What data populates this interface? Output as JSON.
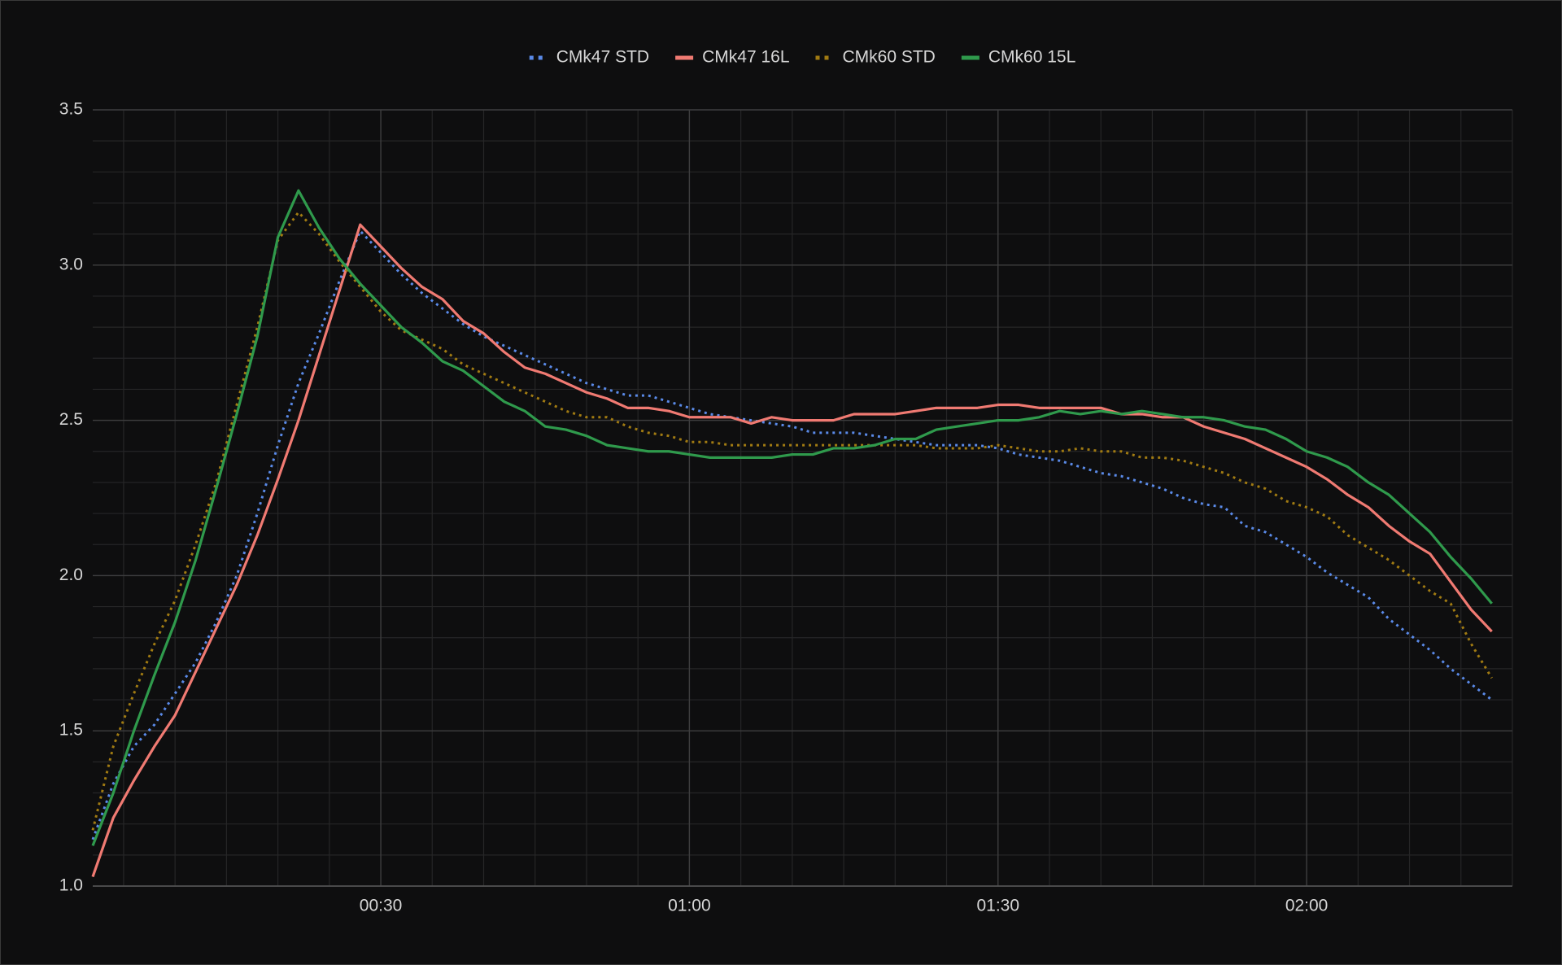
{
  "chart_data": {
    "type": "line",
    "x": [
      2,
      4,
      6,
      8,
      10,
      12,
      14,
      16,
      18,
      20,
      22,
      24,
      26,
      28,
      30,
      32,
      34,
      36,
      38,
      40,
      42,
      44,
      46,
      48,
      50,
      52,
      54,
      56,
      58,
      60,
      62,
      64,
      66,
      68,
      70,
      72,
      74,
      76,
      78,
      80,
      82,
      84,
      86,
      88,
      90,
      92,
      94,
      96,
      98,
      100,
      102,
      104,
      106,
      108,
      110,
      112,
      114,
      116,
      118,
      120,
      122,
      124,
      126,
      128,
      130,
      132,
      134,
      136,
      138
    ],
    "xlim": [
      2,
      140
    ],
    "xticks": [
      {
        "value": 30,
        "label": "00:30"
      },
      {
        "value": 60,
        "label": "01:00"
      },
      {
        "value": 90,
        "label": "01:30"
      },
      {
        "value": 120,
        "label": "02:00"
      }
    ],
    "ylim": [
      1.0,
      3.5
    ],
    "yticks": [
      {
        "value": 1.0,
        "label": "1.0"
      },
      1.5,
      {
        "value": 2.0,
        "label": "2.0"
      },
      2.5,
      {
        "value": 3.0,
        "label": "3.0"
      },
      3.5
    ],
    "grid": true,
    "legend": "top",
    "series": [
      {
        "name": "CMk47 STD",
        "color": "#5a8ae8",
        "dotted": true,
        "values": [
          1.15,
          1.33,
          1.45,
          1.52,
          1.62,
          1.72,
          1.85,
          2.0,
          2.2,
          2.42,
          2.62,
          2.78,
          2.95,
          3.11,
          3.04,
          2.97,
          2.91,
          2.86,
          2.81,
          2.77,
          2.74,
          2.71,
          2.68,
          2.65,
          2.62,
          2.6,
          2.58,
          2.58,
          2.56,
          2.54,
          2.52,
          2.51,
          2.5,
          2.49,
          2.48,
          2.46,
          2.46,
          2.46,
          2.45,
          2.44,
          2.43,
          2.42,
          2.42,
          2.42,
          2.41,
          2.39,
          2.38,
          2.37,
          2.35,
          2.33,
          2.32,
          2.3,
          2.28,
          2.25,
          2.23,
          2.22,
          2.16,
          2.14,
          2.1,
          2.06,
          2.01,
          1.97,
          1.93,
          1.86,
          1.81,
          1.76,
          1.7,
          1.65,
          1.6
        ]
      },
      {
        "name": "CMk47 16L",
        "color": "#f07a72",
        "dotted": false,
        "values": [
          1.03,
          1.22,
          1.34,
          1.45,
          1.55,
          1.69,
          1.83,
          1.97,
          2.13,
          2.31,
          2.5,
          2.71,
          2.92,
          3.13,
          3.06,
          2.99,
          2.93,
          2.89,
          2.82,
          2.78,
          2.72,
          2.67,
          2.65,
          2.62,
          2.59,
          2.57,
          2.54,
          2.54,
          2.53,
          2.51,
          2.51,
          2.51,
          2.49,
          2.51,
          2.5,
          2.5,
          2.5,
          2.52,
          2.52,
          2.52,
          2.53,
          2.54,
          2.54,
          2.54,
          2.55,
          2.55,
          2.54,
          2.54,
          2.54,
          2.54,
          2.52,
          2.52,
          2.51,
          2.51,
          2.48,
          2.46,
          2.44,
          2.41,
          2.38,
          2.35,
          2.31,
          2.26,
          2.22,
          2.16,
          2.11,
          2.07,
          1.98,
          1.89,
          1.82
        ]
      },
      {
        "name": "CMk60 STD",
        "color": "#a17b12",
        "dotted": true,
        "values": [
          1.18,
          1.45,
          1.62,
          1.78,
          1.92,
          2.1,
          2.3,
          2.55,
          2.8,
          3.08,
          3.17,
          3.1,
          3.01,
          2.93,
          2.85,
          2.79,
          2.76,
          2.73,
          2.68,
          2.65,
          2.62,
          2.59,
          2.56,
          2.53,
          2.51,
          2.51,
          2.48,
          2.46,
          2.45,
          2.43,
          2.43,
          2.42,
          2.42,
          2.42,
          2.42,
          2.42,
          2.42,
          2.42,
          2.42,
          2.42,
          2.42,
          2.41,
          2.41,
          2.41,
          2.42,
          2.41,
          2.4,
          2.4,
          2.41,
          2.4,
          2.4,
          2.38,
          2.38,
          2.37,
          2.35,
          2.33,
          2.3,
          2.28,
          2.24,
          2.22,
          2.19,
          2.13,
          2.09,
          2.05,
          2.0,
          1.95,
          1.91,
          1.78,
          1.67
        ]
      },
      {
        "name": "CMk60 15L",
        "color": "#2f9a4c",
        "dotted": false,
        "values": [
          1.13,
          1.3,
          1.5,
          1.68,
          1.85,
          2.05,
          2.28,
          2.52,
          2.77,
          3.09,
          3.24,
          3.12,
          3.02,
          2.94,
          2.87,
          2.8,
          2.75,
          2.69,
          2.66,
          2.61,
          2.56,
          2.53,
          2.48,
          2.47,
          2.45,
          2.42,
          2.41,
          2.4,
          2.4,
          2.39,
          2.38,
          2.38,
          2.38,
          2.38,
          2.39,
          2.39,
          2.41,
          2.41,
          2.42,
          2.44,
          2.44,
          2.47,
          2.48,
          2.49,
          2.5,
          2.5,
          2.51,
          2.53,
          2.52,
          2.53,
          2.52,
          2.53,
          2.52,
          2.51,
          2.51,
          2.5,
          2.48,
          2.47,
          2.44,
          2.4,
          2.38,
          2.35,
          2.3,
          2.26,
          2.2,
          2.14,
          2.06,
          1.99,
          1.91
        ]
      }
    ]
  }
}
